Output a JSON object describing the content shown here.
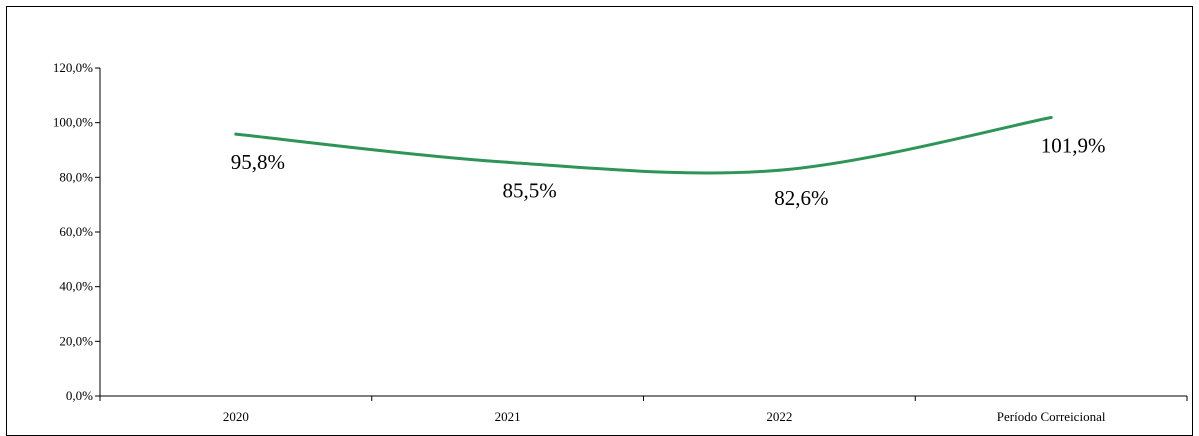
{
  "chart_data": {
    "type": "line",
    "title": "",
    "xlabel": "",
    "ylabel": "",
    "categories": [
      "2020",
      "2021",
      "2022",
      "Período Correicional"
    ],
    "series": [
      {
        "values": [
          95.8,
          85.5,
          82.6,
          101.9
        ],
        "labels": [
          "95,8%",
          "85,5%",
          "82,6%",
          "101,9%"
        ]
      }
    ],
    "y_ticks": [
      "0,0%",
      "20,0%",
      "40,0%",
      "60,0%",
      "80,0%",
      "100,0%",
      "120,0%"
    ],
    "ylim": [
      0,
      120
    ],
    "grid": false,
    "legend": "none",
    "line_color": "#2E9458",
    "smooth": true
  }
}
